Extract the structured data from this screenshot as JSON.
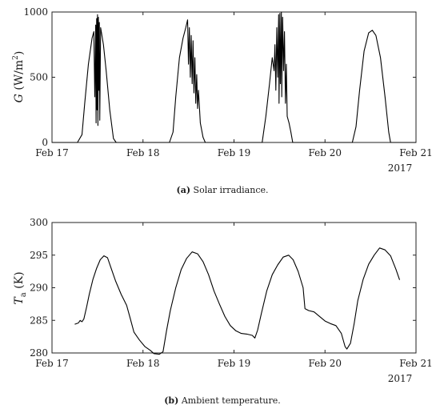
{
  "chart_data": [
    {
      "type": "line",
      "ylabel": "G (W/m²)",
      "ylabel_parts": {
        "symbol": "G",
        "unit_open": " (W/m",
        "sup": "2",
        "unit_close": ")"
      },
      "xlabel": "",
      "caption": {
        "label": "(a)",
        "text": " Solar irradiance."
      },
      "x_tick_labels": [
        "Feb 17",
        "Feb 18",
        "Feb 19",
        "Feb 20",
        "Feb 21"
      ],
      "x_year_label": "2017",
      "xlim": [
        "2017-02-17",
        "2017-02-21"
      ],
      "ylim": [
        0,
        1000
      ],
      "y_ticks": [
        0,
        500,
        1000
      ],
      "grid": false,
      "series": [
        {
          "points": [
            [
              "2017-02-17 00:00",
              0
            ],
            [
              "2017-02-17 06:43",
              0
            ],
            [
              "2017-02-17 07:55",
              60
            ],
            [
              "2017-02-17 08:38",
              300
            ],
            [
              "2017-02-17 09:36",
              600
            ],
            [
              "2017-02-17 10:34",
              800
            ],
            [
              "2017-02-17 11:02",
              850
            ],
            [
              "2017-02-17 11:17",
              350
            ],
            [
              "2017-02-17 11:31",
              900
            ],
            [
              "2017-02-17 11:38",
              150
            ],
            [
              "2017-02-17 11:46",
              950
            ],
            [
              "2017-02-17 11:53",
              250
            ],
            [
              "2017-02-17 12:00",
              980
            ],
            [
              "2017-02-17 12:07",
              130
            ],
            [
              "2017-02-17 12:14",
              960
            ],
            [
              "2017-02-17 12:22",
              400
            ],
            [
              "2017-02-17 12:29",
              920
            ],
            [
              "2017-02-17 12:36",
              170
            ],
            [
              "2017-02-17 12:50",
              880
            ],
            [
              "2017-02-17 13:34",
              750
            ],
            [
              "2017-02-17 14:17",
              550
            ],
            [
              "2017-02-17 15:14",
              250
            ],
            [
              "2017-02-17 16:12",
              30
            ],
            [
              "2017-02-17 16:55",
              0
            ],
            [
              "2017-02-18 06:58",
              0
            ],
            [
              "2017-02-18 07:55",
              80
            ],
            [
              "2017-02-18 08:38",
              350
            ],
            [
              "2017-02-18 09:36",
              650
            ],
            [
              "2017-02-18 10:34",
              800
            ],
            [
              "2017-02-18 11:17",
              880
            ],
            [
              "2017-02-18 11:46",
              940
            ],
            [
              "2017-02-18 12:00",
              600
            ],
            [
              "2017-02-18 12:14",
              880
            ],
            [
              "2017-02-18 12:29",
              500
            ],
            [
              "2017-02-18 12:43",
              820
            ],
            [
              "2017-02-18 12:58",
              450
            ],
            [
              "2017-02-18 13:12",
              780
            ],
            [
              "2017-02-18 13:26",
              380
            ],
            [
              "2017-02-18 13:41",
              650
            ],
            [
              "2017-02-18 13:55",
              300
            ],
            [
              "2017-02-18 14:10",
              520
            ],
            [
              "2017-02-18 14:24",
              260
            ],
            [
              "2017-02-18 14:38",
              400
            ],
            [
              "2017-02-18 15:07",
              150
            ],
            [
              "2017-02-18 15:50",
              40
            ],
            [
              "2017-02-18 16:26",
              0
            ],
            [
              "2017-02-19 07:26",
              0
            ],
            [
              "2017-02-19 08:24",
              200
            ],
            [
              "2017-02-19 09:22",
              450
            ],
            [
              "2017-02-19 10:05",
              650
            ],
            [
              "2017-02-19 10:34",
              550
            ],
            [
              "2017-02-19 10:48",
              750
            ],
            [
              "2017-02-19 11:02",
              400
            ],
            [
              "2017-02-19 11:17",
              880
            ],
            [
              "2017-02-19 11:31",
              500
            ],
            [
              "2017-02-19 11:46",
              980
            ],
            [
              "2017-02-19 11:53",
              300
            ],
            [
              "2017-02-19 12:07",
              990
            ],
            [
              "2017-02-19 12:14",
              450
            ],
            [
              "2017-02-19 12:29",
              1000
            ],
            [
              "2017-02-19 12:36",
              350
            ],
            [
              "2017-02-19 12:50",
              960
            ],
            [
              "2017-02-19 13:05",
              550
            ],
            [
              "2017-02-19 13:19",
              850
            ],
            [
              "2017-02-19 13:34",
              300
            ],
            [
              "2017-02-19 13:48",
              600
            ],
            [
              "2017-02-19 14:02",
              200
            ],
            [
              "2017-02-19 14:31",
              150
            ],
            [
              "2017-02-19 15:00",
              80
            ],
            [
              "2017-02-19 15:29",
              0
            ],
            [
              "2017-02-20 07:12",
              0
            ],
            [
              "2017-02-20 08:10",
              120
            ],
            [
              "2017-02-20 09:07",
              400
            ],
            [
              "2017-02-20 10:19",
              700
            ],
            [
              "2017-02-20 11:31",
              840
            ],
            [
              "2017-02-20 12:29",
              860
            ],
            [
              "2017-02-20 13:26",
              820
            ],
            [
              "2017-02-20 14:38",
              650
            ],
            [
              "2017-02-20 15:50",
              350
            ],
            [
              "2017-02-20 16:48",
              80
            ],
            [
              "2017-02-20 17:17",
              0
            ],
            [
              "2017-02-21 00:00",
              0
            ]
          ]
        }
      ]
    },
    {
      "type": "line",
      "ylabel": "Ta (K)",
      "ylabel_parts": {
        "symbol": "T",
        "sub": "a",
        "unit": " (K)"
      },
      "xlabel": "",
      "caption": {
        "label": "(b)",
        "text": " Ambient temperature."
      },
      "x_tick_labels": [
        "Feb 17",
        "Feb 18",
        "Feb 19",
        "Feb 20",
        "Feb 21"
      ],
      "x_year_label": "2017",
      "xlim": [
        "2017-02-17",
        "2017-02-21"
      ],
      "ylim": [
        280,
        300
      ],
      "y_ticks": [
        280,
        285,
        290,
        295,
        300
      ],
      "grid": false,
      "series": [
        {
          "points": [
            [
              "2017-02-17 06:00",
              284.4
            ],
            [
              "2017-02-17 06:58",
              284.6
            ],
            [
              "2017-02-17 07:26",
              285.0
            ],
            [
              "2017-02-17 07:55",
              284.8
            ],
            [
              "2017-02-17 08:24",
              285.2
            ],
            [
              "2017-02-17 09:07",
              287.0
            ],
            [
              "2017-02-17 09:50",
              289.0
            ],
            [
              "2017-02-17 10:48",
              291.3
            ],
            [
              "2017-02-17 11:46",
              293.0
            ],
            [
              "2017-02-17 12:43",
              294.3
            ],
            [
              "2017-02-17 13:41",
              294.9
            ],
            [
              "2017-02-17 14:38",
              294.6
            ],
            [
              "2017-02-17 15:36",
              293.0
            ],
            [
              "2017-02-17 16:48",
              291.0
            ],
            [
              "2017-02-17 18:14",
              289.0
            ],
            [
              "2017-02-17 19:41",
              287.3
            ],
            [
              "2017-02-17 20:38",
              285.3
            ],
            [
              "2017-02-17 21:36",
              283.2
            ],
            [
              "2017-02-17 23:02",
              282.0
            ],
            [
              "2017-02-18 00:29",
              281.0
            ],
            [
              "2017-02-18 01:55",
              280.4
            ],
            [
              "2017-02-18 02:53",
              279.9
            ],
            [
              "2017-02-18 04:19",
              279.8
            ],
            [
              "2017-02-18 05:17",
              280.2
            ],
            [
              "2017-02-18 06:14",
              283.5
            ],
            [
              "2017-02-18 07:12",
              286.5
            ],
            [
              "2017-02-18 08:38",
              290.0
            ],
            [
              "2017-02-18 10:05",
              292.8
            ],
            [
              "2017-02-18 11:31",
              294.5
            ],
            [
              "2017-02-18 12:58",
              295.5
            ],
            [
              "2017-02-18 14:24",
              295.2
            ],
            [
              "2017-02-18 15:50",
              294.0
            ],
            [
              "2017-02-18 17:17",
              292.0
            ],
            [
              "2017-02-18 18:43",
              289.5
            ],
            [
              "2017-02-18 20:10",
              287.5
            ],
            [
              "2017-02-18 21:36",
              285.6
            ],
            [
              "2017-02-18 23:02",
              284.2
            ],
            [
              "2017-02-19 00:29",
              283.4
            ],
            [
              "2017-02-19 01:55",
              283.0
            ],
            [
              "2017-02-19 03:22",
              282.9
            ],
            [
              "2017-02-19 04:48",
              282.7
            ],
            [
              "2017-02-19 05:31",
              282.3
            ],
            [
              "2017-02-19 06:14",
              283.5
            ],
            [
              "2017-02-19 07:12",
              286.0
            ],
            [
              "2017-02-19 08:38",
              289.5
            ],
            [
              "2017-02-19 10:05",
              292.0
            ],
            [
              "2017-02-19 11:31",
              293.5
            ],
            [
              "2017-02-19 12:58",
              294.7
            ],
            [
              "2017-02-19 14:24",
              295.0
            ],
            [
              "2017-02-19 15:36",
              294.3
            ],
            [
              "2017-02-19 16:55",
              292.5
            ],
            [
              "2017-02-19 18:14",
              290.0
            ],
            [
              "2017-02-19 18:43",
              286.8
            ],
            [
              "2017-02-19 19:41",
              286.5
            ],
            [
              "2017-02-19 21:07",
              286.3
            ],
            [
              "2017-02-19 22:34",
              285.6
            ],
            [
              "2017-02-20 00:00",
              284.9
            ],
            [
              "2017-02-20 01:26",
              284.5
            ],
            [
              "2017-02-20 02:53",
              284.2
            ],
            [
              "2017-02-20 04:19",
              283.0
            ],
            [
              "2017-02-20 05:17",
              281.0
            ],
            [
              "2017-02-20 05:46",
              280.6
            ],
            [
              "2017-02-20 06:43",
              281.5
            ],
            [
              "2017-02-20 07:41",
              284.5
            ],
            [
              "2017-02-20 08:38",
              288.0
            ],
            [
              "2017-02-20 10:05",
              291.3
            ],
            [
              "2017-02-20 11:31",
              293.6
            ],
            [
              "2017-02-20 12:58",
              295.0
            ],
            [
              "2017-02-20 14:24",
              296.1
            ],
            [
              "2017-02-20 15:50",
              295.8
            ],
            [
              "2017-02-20 17:17",
              294.9
            ],
            [
              "2017-02-20 18:43",
              292.8
            ],
            [
              "2017-02-20 19:41",
              291.2
            ]
          ]
        }
      ]
    }
  ]
}
